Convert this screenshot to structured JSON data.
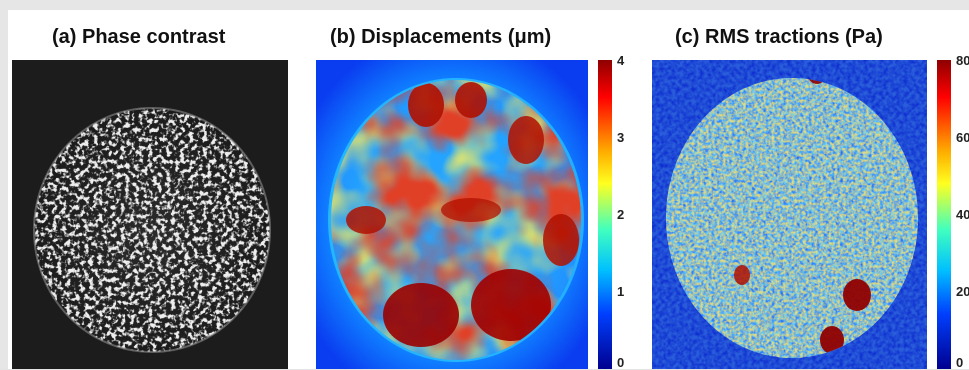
{
  "panels": {
    "a": {
      "title": "(a) Phase contrast"
    },
    "b": {
      "title": "(b) Displacements (μm)"
    },
    "c": {
      "title": "(c) RMS tractions (Pa)"
    }
  },
  "colorbars": {
    "b": {
      "ticks": [
        "4",
        "3",
        "2",
        "1",
        "0"
      ]
    },
    "c": {
      "ticks": [
        "80",
        "60",
        "40",
        "20",
        "0"
      ]
    }
  },
  "colors": {
    "jet_low": "#00008f",
    "jet_mid": "#40ffbf",
    "jet_high": "#8f0000",
    "phase_bg": "#1c1c1c",
    "phase_cells": "#cfcfcf"
  }
}
